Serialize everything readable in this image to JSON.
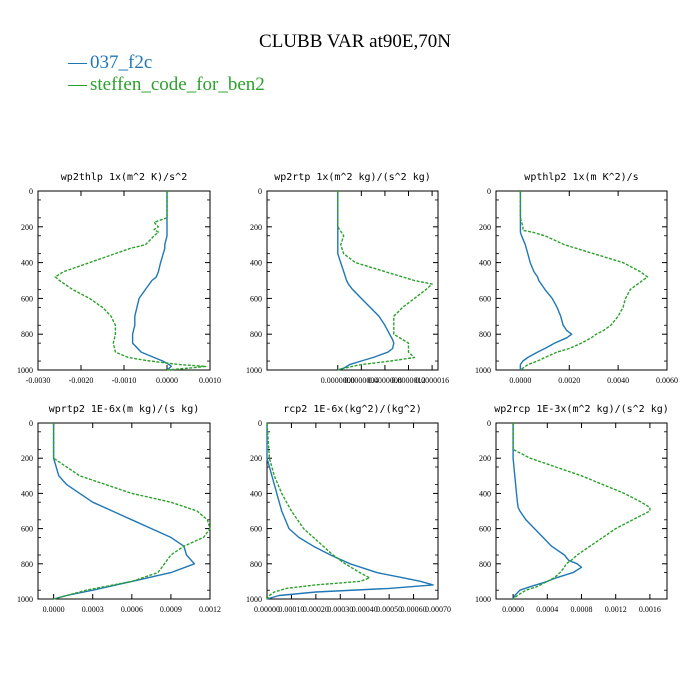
{
  "title": "CLUBB VAR at90E,70N",
  "colors": {
    "s1": "#1f77b4",
    "s2": "#2ca02c",
    "axis": "#000000"
  },
  "legend": [
    {
      "label": "037_f2c",
      "color": "#1f77b4",
      "marker": "—"
    },
    {
      "label": "steffen_code_for_ben2",
      "color": "#2ca02c",
      "marker": "—"
    }
  ],
  "chart_data": [
    {
      "type": "line",
      "title": "wp2thlp  1x(m^2 K)/s^2",
      "xlim": [
        -0.003,
        0.001
      ],
      "ylim": [
        1000,
        0
      ],
      "xticks": [
        -0.003,
        -0.002,
        -0.001,
        0.0,
        0.001
      ],
      "xticklabels": [
        "-0.0030",
        "-0.0020",
        "-0.0010",
        "0.0000",
        "0.0010"
      ],
      "yticks": [
        0,
        200,
        400,
        600,
        800,
        1000
      ],
      "y": [
        0,
        100,
        150,
        175,
        200,
        215,
        230,
        250,
        300,
        320,
        400,
        450,
        480,
        500,
        550,
        600,
        650,
        700,
        750,
        800,
        850,
        900,
        930,
        950,
        970,
        980,
        990,
        1000
      ],
      "series": [
        {
          "name": "037_f2c",
          "x": [
            0.0,
            0.0,
            0.0,
            0.0,
            0.0,
            0.0,
            0.0,
            0.0,
            -5e-05,
            -5e-05,
            -0.00015,
            -0.0002,
            -0.00025,
            -0.00035,
            -0.0005,
            -0.00065,
            -0.0007,
            -0.00075,
            -0.00075,
            -0.0008,
            -0.0008,
            -0.0006,
            -0.0003,
            -0.0001,
            5e-05,
            0.0001,
            5e-05,
            0.0
          ]
        },
        {
          "name": "steffen_code_for_ben2",
          "x": [
            0.0,
            0.0,
            0.0,
            -0.0003,
            -0.0002,
            -0.0003,
            -0.0002,
            -0.0003,
            -0.0005,
            -0.00085,
            -0.0018,
            -0.0024,
            -0.0026,
            -0.0025,
            -0.0022,
            -0.0018,
            -0.0015,
            -0.0013,
            -0.0012,
            -0.0012,
            -0.00125,
            -0.0012,
            -0.0009,
            -0.0004,
            0.0003,
            0.0009,
            0.0005,
            0.0
          ]
        }
      ]
    },
    {
      "type": "line",
      "title": "wp2rtp  1x(m^2 kg)/(s^2 kg)",
      "xlim": [
        -1.2e-06,
        1.7e-06
      ],
      "ylim": [
        1000,
        0
      ],
      "xticks": [
        0.0,
        4e-07,
        8e-07,
        1.2e-06,
        1.6e-06
      ],
      "xticklabels": [
        "0.0000000",
        "0.0000004",
        "0.0000008",
        "0.0000012",
        "0.0000016"
      ],
      "yticks": [
        0,
        200,
        400,
        600,
        800,
        1000
      ],
      "y": [
        0,
        100,
        200,
        250,
        300,
        350,
        400,
        450,
        500,
        520,
        550,
        600,
        650,
        700,
        750,
        800,
        830,
        850,
        880,
        900,
        930,
        950,
        970,
        990,
        1000
      ],
      "series": [
        {
          "name": "037_f2c",
          "x": [
            0.0,
            0.0,
            0.0,
            0.0,
            0.0,
            0.0,
            5e-08,
            1e-07,
            1.5e-07,
            1.8e-07,
            2.5e-07,
            4e-07,
            5.5e-07,
            7e-07,
            8e-07,
            8.8e-07,
            9.3e-07,
            9.5e-07,
            9.3e-07,
            8.5e-07,
            6e-07,
            4e-07,
            2e-07,
            1e-07,
            0.0
          ]
        },
        {
          "name": "steffen_code_for_ben2",
          "x": [
            0.0,
            0.0,
            0.0,
            1e-07,
            5e-08,
            1e-07,
            3e-07,
            8e-07,
            1.3e-06,
            1.6e-06,
            1.5e-06,
            1.3e-06,
            1.1e-06,
            9.5e-07,
            9.5e-07,
            9.5e-07,
            1.1e-06,
            1.2e-06,
            1.2e-06,
            1.2e-06,
            1.3e-06,
            9e-07,
            4e-07,
            1e-07,
            0.0
          ]
        }
      ]
    },
    {
      "type": "line",
      "title": "wpthlp2  1x(m K^2)/s",
      "xlim": [
        -0.001,
        0.006
      ],
      "ylim": [
        1000,
        0
      ],
      "xticks": [
        0.0,
        0.002,
        0.004,
        0.006
      ],
      "xticklabels": [
        "0.0000",
        "0.0020",
        "0.0040",
        "0.0060"
      ],
      "yticks": [
        0,
        200,
        400,
        600,
        800,
        1000
      ],
      "y": [
        0,
        100,
        150,
        200,
        220,
        230,
        250,
        300,
        350,
        400,
        450,
        480,
        500,
        550,
        600,
        650,
        700,
        750,
        780,
        800,
        820,
        850,
        880,
        900,
        930,
        950,
        970,
        990,
        1000
      ],
      "series": [
        {
          "name": "037_f2c",
          "x": [
            0.0,
            0.0,
            0.0,
            0.0,
            0.0,
            0.0,
            5e-05,
            0.0002,
            0.0003,
            0.0004,
            0.00055,
            0.0007,
            0.00075,
            0.001,
            0.0013,
            0.0015,
            0.00165,
            0.00175,
            0.0019,
            0.0021,
            0.0019,
            0.0014,
            0.001,
            0.0007,
            0.0003,
            0.0001,
            0.0,
            0.0,
            0.0
          ]
        },
        {
          "name": "steffen_code_for_ben2",
          "x": [
            0.0,
            0.0,
            0.0,
            0.0001,
            0.0001,
            0.0005,
            0.001,
            0.0018,
            0.003,
            0.0042,
            0.0049,
            0.0052,
            0.005,
            0.0045,
            0.0043,
            0.0042,
            0.004,
            0.0037,
            0.0034,
            0.0031,
            0.0029,
            0.0025,
            0.002,
            0.0015,
            0.001,
            0.0007,
            0.0003,
            0.0001,
            0.0
          ]
        }
      ]
    },
    {
      "type": "line",
      "title": "wprtp2  1E-6x(m kg)/(s kg)",
      "xlim": [
        -0.00012,
        0.0012
      ],
      "ylim": [
        1000,
        0
      ],
      "xticks": [
        0.0,
        0.0003,
        0.0006,
        0.0009,
        0.0012
      ],
      "xticklabels": [
        "0.0000",
        "0.0003",
        "0.0006",
        "0.0009",
        "0.0012"
      ],
      "yticks": [
        0,
        200,
        400,
        600,
        800,
        1000
      ],
      "y": [
        0,
        100,
        150,
        200,
        250,
        300,
        350,
        400,
        450,
        500,
        550,
        600,
        650,
        700,
        750,
        800,
        850,
        900,
        950,
        980,
        1000
      ],
      "series": [
        {
          "name": "037_f2c",
          "x": [
            0.0,
            0.0,
            0.0,
            0.0,
            2e-05,
            4e-05,
            0.0001,
            0.0002,
            0.0003,
            0.00045,
            0.0006,
            0.00075,
            0.0009,
            0.001,
            0.00102,
            0.00108,
            0.0009,
            0.0006,
            0.0003,
            0.0001,
            0.0
          ]
        },
        {
          "name": "steffen_code_for_ben2",
          "x": [
            0.0,
            0.0,
            0.0,
            0.0,
            0.0001,
            0.0002,
            0.0004,
            0.0006,
            0.0009,
            0.0011,
            0.00118,
            0.0012,
            0.00115,
            0.001,
            0.0009,
            0.00085,
            0.0008,
            0.0006,
            0.00025,
            0.0001,
            0.0
          ]
        }
      ]
    },
    {
      "type": "line",
      "title": "rcp2  1E-6x(kg^2)/(kg^2)",
      "xlim": [
        0.0,
        0.0007
      ],
      "ylim": [
        1000,
        0
      ],
      "xticks": [
        0.0,
        0.0001,
        0.0002,
        0.0003,
        0.0004,
        0.0005,
        0.0006,
        0.0007
      ],
      "xticklabels": [
        "0.00000",
        "0.00010",
        "0.00020",
        "0.00030",
        "0.00040",
        "0.00050",
        "0.00060",
        "0.00070"
      ],
      "yticks": [
        0,
        200,
        400,
        600,
        800,
        1000
      ],
      "y": [
        0,
        200,
        300,
        400,
        500,
        600,
        650,
        700,
        750,
        800,
        850,
        880,
        900,
        920,
        940,
        960,
        980,
        1000
      ],
      "series": [
        {
          "name": "037_f2c",
          "x": [
            0.0,
            0.0,
            2e-05,
            4e-05,
            6e-05,
            9e-05,
            0.00013,
            0.00019,
            0.00026,
            0.00034,
            0.00045,
            0.00056,
            0.00063,
            0.00068,
            0.0005,
            0.0002,
            5e-05,
            0.0
          ]
        },
        {
          "name": "steffen_code_for_ben2",
          "x": [
            0.0,
            1e-05,
            3e-05,
            6e-05,
            0.0001,
            0.00015,
            0.00019,
            0.00023,
            0.00027,
            0.00032,
            0.00038,
            0.00042,
            0.00038,
            0.0002,
            8e-05,
            3e-05,
            1e-05,
            0.0
          ]
        }
      ]
    },
    {
      "type": "line",
      "title": "wp2rcp  1E-3x(m^2 kg)/(s^2 kg)",
      "xlim": [
        -0.0002,
        0.0018
      ],
      "ylim": [
        1000,
        0
      ],
      "xticks": [
        0.0,
        0.0004,
        0.0008,
        0.0012,
        0.0016
      ],
      "xticklabels": [
        "0.0000",
        "0.0004",
        "0.0008",
        "0.0012",
        "0.0016"
      ],
      "yticks": [
        0,
        200,
        400,
        600,
        800,
        1000
      ],
      "y": [
        0,
        100,
        150,
        200,
        300,
        400,
        450,
        480,
        500,
        550,
        600,
        650,
        700,
        750,
        780,
        800,
        820,
        850,
        880,
        900,
        930,
        950,
        980,
        1000
      ],
      "series": [
        {
          "name": "037_f2c",
          "x": [
            0.0,
            0.0,
            0.0,
            0.0,
            2e-05,
            4e-05,
            5e-05,
            6e-05,
            8e-05,
            0.00015,
            0.00025,
            0.00035,
            0.00045,
            0.0006,
            0.00065,
            0.00075,
            0.0008,
            0.0007,
            0.0005,
            0.0004,
            0.0002,
            8e-05,
            2e-05,
            0.0
          ]
        },
        {
          "name": "steffen_code_for_ben2",
          "x": [
            0.0,
            0.0,
            0.0,
            0.0002,
            0.0008,
            0.0013,
            0.0015,
            0.0016,
            0.0016,
            0.0014,
            0.0012,
            0.00105,
            0.0009,
            0.00075,
            0.00068,
            0.00062,
            0.0006,
            0.00055,
            0.00048,
            0.0004,
            0.00028,
            0.00015,
            5e-05,
            0.0
          ]
        }
      ]
    }
  ]
}
